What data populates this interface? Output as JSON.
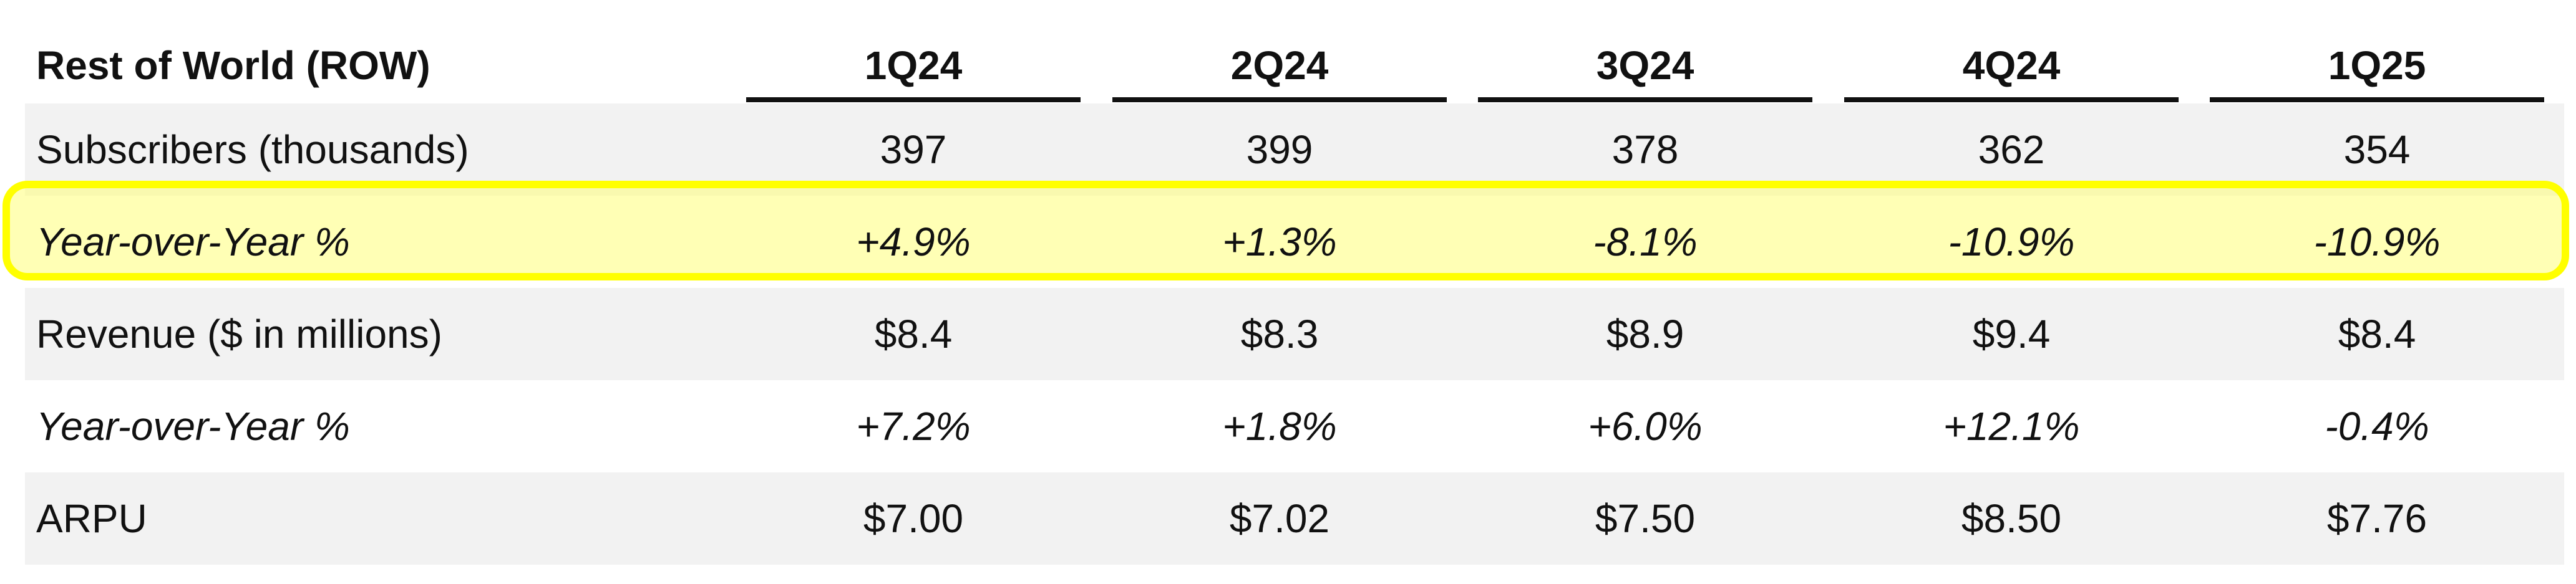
{
  "table": {
    "title": "Rest of World (ROW)",
    "columns": [
      "1Q24",
      "2Q24",
      "3Q24",
      "4Q24",
      "1Q25"
    ],
    "rows": [
      {
        "label": "Subscribers (thousands)",
        "values": [
          "397",
          "399",
          "378",
          "362",
          "354"
        ],
        "italic": false,
        "shaded": true
      },
      {
        "label": "Year-over-Year %",
        "values": [
          "+4.9%",
          "+1.3%",
          "-8.1%",
          "-10.9%",
          "-10.9%"
        ],
        "italic": true,
        "shaded": false,
        "highlighted": true
      },
      {
        "label": "Revenue ($ in millions)",
        "values": [
          "$8.4",
          "$8.3",
          "$8.9",
          "$9.4",
          "$8.4"
        ],
        "italic": false,
        "shaded": true
      },
      {
        "label": "Year-over-Year %",
        "values": [
          "+7.2%",
          "+1.8%",
          "+6.0%",
          "+12.1%",
          "-0.4%"
        ],
        "italic": true,
        "shaded": false
      },
      {
        "label": "ARPU",
        "values": [
          "$7.00",
          "$7.02",
          "$7.50",
          "$8.50",
          "$7.76"
        ],
        "italic": false,
        "shaded": true
      }
    ]
  },
  "colors": {
    "highlight_border": "#ffff00",
    "shaded_row": "#f2f2f2",
    "text": "#111111"
  }
}
